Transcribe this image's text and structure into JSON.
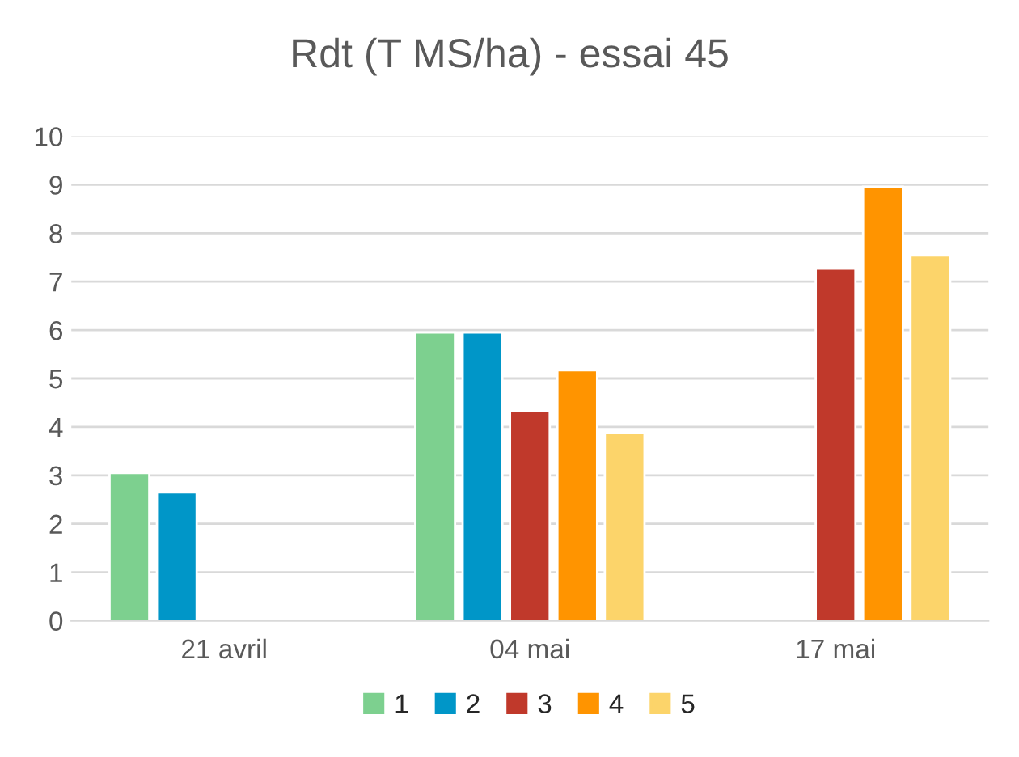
{
  "chart_data": {
    "type": "bar",
    "title": "Rdt (T MS/ha) - essai 45",
    "categories": [
      "21 avril",
      "04 mai",
      "17 mai"
    ],
    "series": [
      {
        "name": "1",
        "color": "#7dd08f",
        "values": [
          3.05,
          5.95,
          null
        ]
      },
      {
        "name": "2",
        "color": "#0096c8",
        "values": [
          2.65,
          5.95,
          null
        ]
      },
      {
        "name": "3",
        "color": "#c0392b",
        "values": [
          null,
          4.33,
          7.27
        ]
      },
      {
        "name": "4",
        "color": "#ff9400",
        "values": [
          null,
          5.17,
          8.96
        ]
      },
      {
        "name": "5",
        "color": "#fcd46a",
        "values": [
          null,
          3.87,
          7.54
        ]
      }
    ],
    "ylim": [
      0,
      10
    ],
    "yticks": [
      0,
      1,
      2,
      3,
      4,
      5,
      6,
      7,
      8,
      9,
      10
    ],
    "grid": "y",
    "legend": "bottom"
  }
}
